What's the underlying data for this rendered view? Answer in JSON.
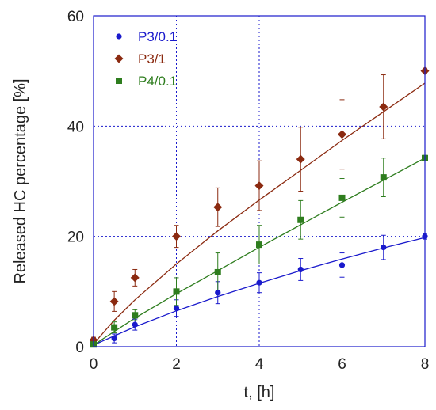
{
  "chart_data": {
    "type": "scatter",
    "xlabel": "t, [h]",
    "ylabel": "Released HC percentage [%]",
    "xlim": [
      0,
      8
    ],
    "ylim": [
      0,
      60
    ],
    "xticks": [
      0,
      2,
      4,
      6,
      8
    ],
    "yticks": [
      0,
      20,
      40,
      60
    ],
    "grid": true,
    "legend_position": "top-left",
    "series": [
      {
        "name": "P3/0.1",
        "color": "#1a1acc",
        "marker": "circle",
        "x": [
          0,
          0.5,
          1,
          2,
          3,
          4,
          5,
          6,
          7,
          8
        ],
        "y": [
          0.5,
          1.5,
          4.0,
          7.0,
          9.8,
          11.6,
          14.0,
          14.8,
          18.0,
          20.0
        ],
        "err": [
          0.3,
          0.8,
          1.0,
          1.5,
          2.0,
          1.8,
          2.0,
          2.2,
          2.2,
          0.5
        ],
        "fit": [
          [
            0,
            0.3
          ],
          [
            1,
            3.6
          ],
          [
            2,
            6.5
          ],
          [
            3,
            9.1
          ],
          [
            4,
            11.5
          ],
          [
            5,
            13.8
          ],
          [
            6,
            15.9
          ],
          [
            7,
            17.9
          ],
          [
            8,
            19.8
          ]
        ]
      },
      {
        "name": "P3/1",
        "color": "#8b2a10",
        "marker": "diamond",
        "x": [
          0,
          0.5,
          1,
          2,
          3,
          4,
          5,
          6,
          7,
          8
        ],
        "y": [
          1.2,
          8.2,
          12.5,
          20.0,
          25.3,
          29.2,
          34.0,
          38.5,
          43.5,
          50.0
        ],
        "err": [
          0.5,
          1.8,
          1.5,
          2.0,
          3.5,
          4.5,
          5.8,
          6.3,
          5.8,
          0.5
        ],
        "fit": [
          [
            0,
            0.5
          ],
          [
            0.5,
            4.8
          ],
          [
            1,
            8.5
          ],
          [
            2,
            15.0
          ],
          [
            3,
            21.0
          ],
          [
            4,
            26.6
          ],
          [
            5,
            32.0
          ],
          [
            6,
            37.4
          ],
          [
            7,
            42.6
          ],
          [
            8,
            47.8
          ]
        ]
      },
      {
        "name": "P4/0.1",
        "color": "#2e7d1e",
        "marker": "square",
        "x": [
          0,
          0.5,
          1,
          2,
          3,
          4,
          5,
          6,
          7,
          8
        ],
        "y": [
          0.4,
          3.5,
          5.7,
          10.0,
          13.5,
          18.5,
          23.0,
          27.0,
          30.7,
          34.2
        ],
        "err": [
          0.3,
          1.0,
          1.0,
          2.5,
          3.5,
          3.5,
          3.5,
          3.5,
          3.5,
          0.5
        ],
        "fit": [
          [
            0,
            0.3
          ],
          [
            1,
            5.2
          ],
          [
            2,
            9.6
          ],
          [
            3,
            13.8
          ],
          [
            4,
            18.0
          ],
          [
            5,
            22.1
          ],
          [
            6,
            26.2
          ],
          [
            7,
            30.2
          ],
          [
            8,
            34.2
          ]
        ]
      }
    ]
  }
}
